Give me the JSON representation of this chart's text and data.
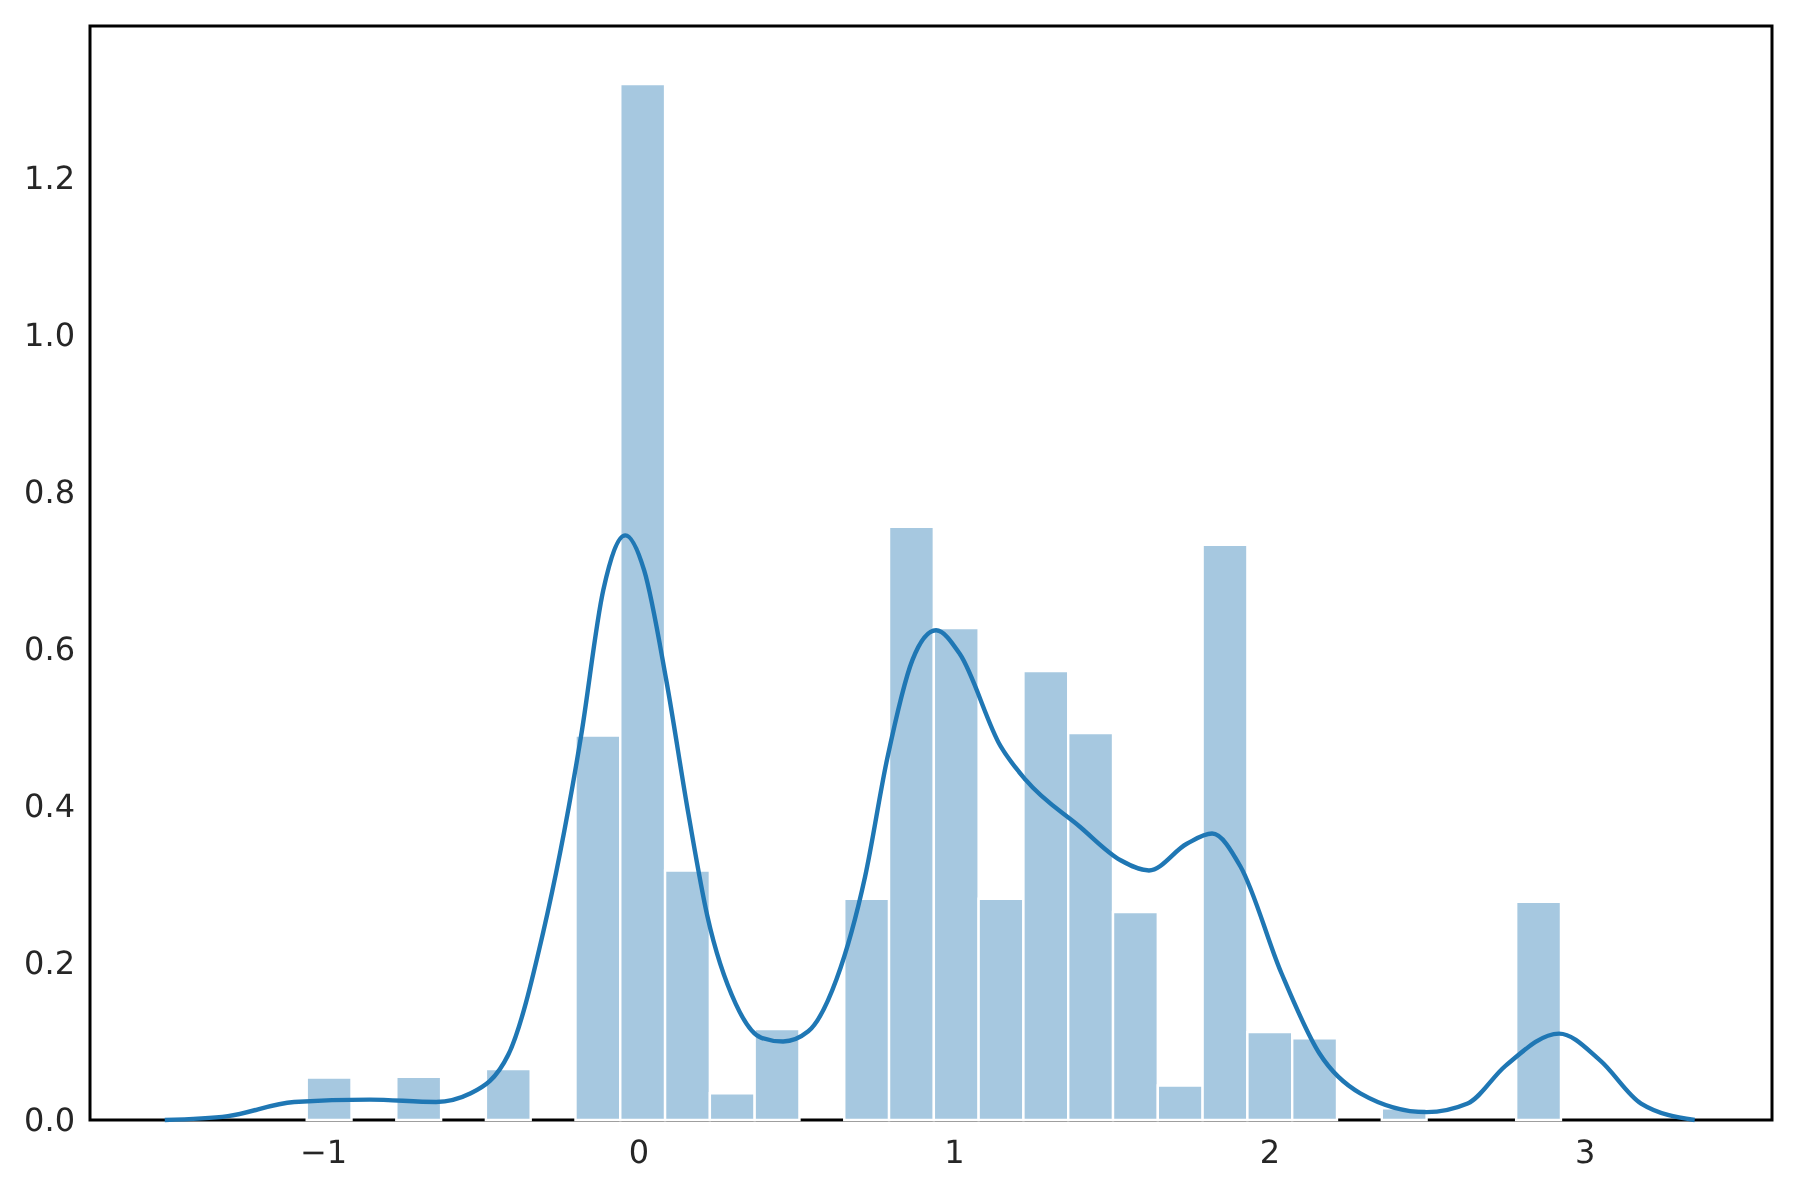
{
  "chart_data": {
    "type": "histogram",
    "xlim": [
      -1.737,
      3.595
    ],
    "ylim": [
      0,
      1.394
    ],
    "xticks": [
      {
        "value": -1,
        "label": "−1"
      },
      0,
      1,
      2,
      3
    ],
    "yticks": [
      {
        "value": 0,
        "label": "0.0"
      },
      {
        "value": 0.2,
        "label": "0.2"
      },
      {
        "value": 0.4,
        "label": "0.4"
      },
      {
        "value": 0.6,
        "label": "0.6"
      },
      {
        "value": 0.8,
        "label": "0.8"
      },
      {
        "value": 1.0,
        "label": "1.0"
      },
      {
        "value": 1.2,
        "label": "1.2"
      }
    ],
    "series": [
      {
        "color": "#a6c8e0",
        "bins": [
          -1.05,
          -0.908,
          -0.766,
          -0.624,
          -0.482,
          -0.34,
          -0.198,
          -0.056,
          0.086,
          0.228,
          0.37,
          0.512,
          0.654,
          0.796,
          0.938,
          1.08,
          1.222,
          1.364,
          1.506,
          1.648,
          1.79,
          1.932,
          2.074,
          2.216,
          2.358,
          2.5,
          2.642,
          2.784,
          2.926
        ],
        "values": [
          0.054,
          0,
          0.055,
          0,
          0.065,
          0,
          0.49,
          1.32,
          0.318,
          0.034,
          0.116,
          0,
          0.282,
          0.756,
          0.627,
          0.282,
          0.572,
          0.493,
          0.265,
          0.044,
          0.733,
          0.112,
          0.104,
          0,
          0.015,
          0,
          0,
          0.278
        ]
      },
      {
        "type": "line",
        "color": "#1f77b4",
        "x": [
          -1.5,
          -1.3,
          -1.09,
          -0.85,
          -0.64,
          -0.53,
          -0.41,
          -0.3,
          -0.18,
          -0.11,
          -0.04,
          0.02,
          0.09,
          0.16,
          0.22,
          0.31,
          0.39,
          0.46,
          0.54,
          0.63,
          0.72,
          0.79,
          0.87,
          0.945,
          1.02,
          1.15,
          1.23,
          1.4,
          1.53,
          1.62,
          1.74,
          1.82,
          1.91,
          2.04,
          2.16,
          2.29,
          2.5,
          2.63,
          2.75,
          2.92,
          3.05,
          3.18,
          3.35
        ],
        "values": [
          0,
          0.005,
          0.023,
          0.026,
          0.023,
          0.034,
          0.084,
          0.24,
          0.49,
          0.675,
          0.745,
          0.7,
          0.56,
          0.39,
          0.26,
          0.148,
          0.105,
          0.1,
          0.113,
          0.18,
          0.31,
          0.46,
          0.586,
          0.624,
          0.594,
          0.476,
          0.433,
          0.374,
          0.331,
          0.318,
          0.352,
          0.365,
          0.323,
          0.187,
          0.085,
          0.034,
          0.01,
          0.021,
          0.069,
          0.11,
          0.076,
          0.021,
          0
        ]
      }
    ]
  }
}
